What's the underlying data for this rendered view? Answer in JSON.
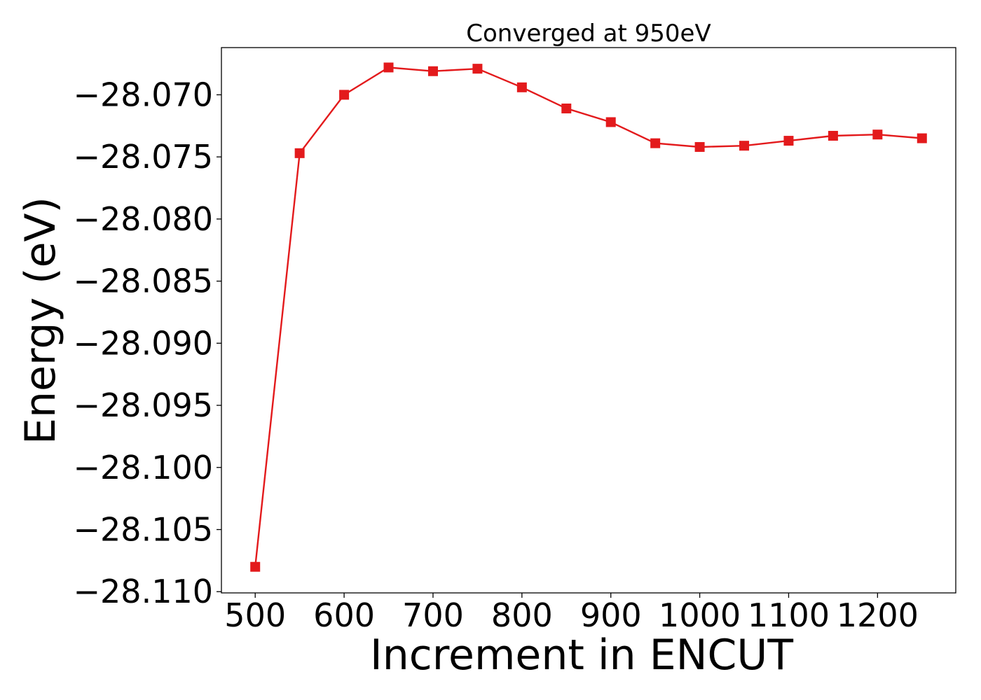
{
  "chart_data": {
    "type": "line",
    "title": "Converged at 950eV",
    "xlabel": "Increment in ENCUT",
    "ylabel": "Energy (eV)",
    "xlim": [
      462,
      1288
    ],
    "ylim": [
      -28.1101,
      -28.0662
    ],
    "xticks": [
      500,
      600,
      700,
      800,
      900,
      1000,
      1100,
      1200
    ],
    "yticks": [
      -28.07,
      -28.075,
      -28.08,
      -28.085,
      -28.09,
      -28.095,
      -28.1,
      -28.105,
      -28.11
    ],
    "ytick_labels": [
      "−28.070",
      "−28.075",
      "−28.080",
      "−28.085",
      "−28.090",
      "−28.095",
      "−28.100",
      "−28.105",
      "−28.110"
    ],
    "grid": false,
    "marker": "square",
    "series": [
      {
        "color": "#e31a1c",
        "x": [
          500,
          550,
          600,
          650,
          700,
          750,
          800,
          850,
          900,
          950,
          1000,
          1050,
          1100,
          1150,
          1200,
          1250
        ],
        "y": [
          -28.108,
          -28.0747,
          -28.07,
          -28.0678,
          -28.0681,
          -28.0679,
          -28.0694,
          -28.0711,
          -28.0722,
          -28.0739,
          -28.0742,
          -28.0741,
          -28.0737,
          -28.0733,
          -28.0732,
          -28.0735
        ]
      }
    ]
  }
}
